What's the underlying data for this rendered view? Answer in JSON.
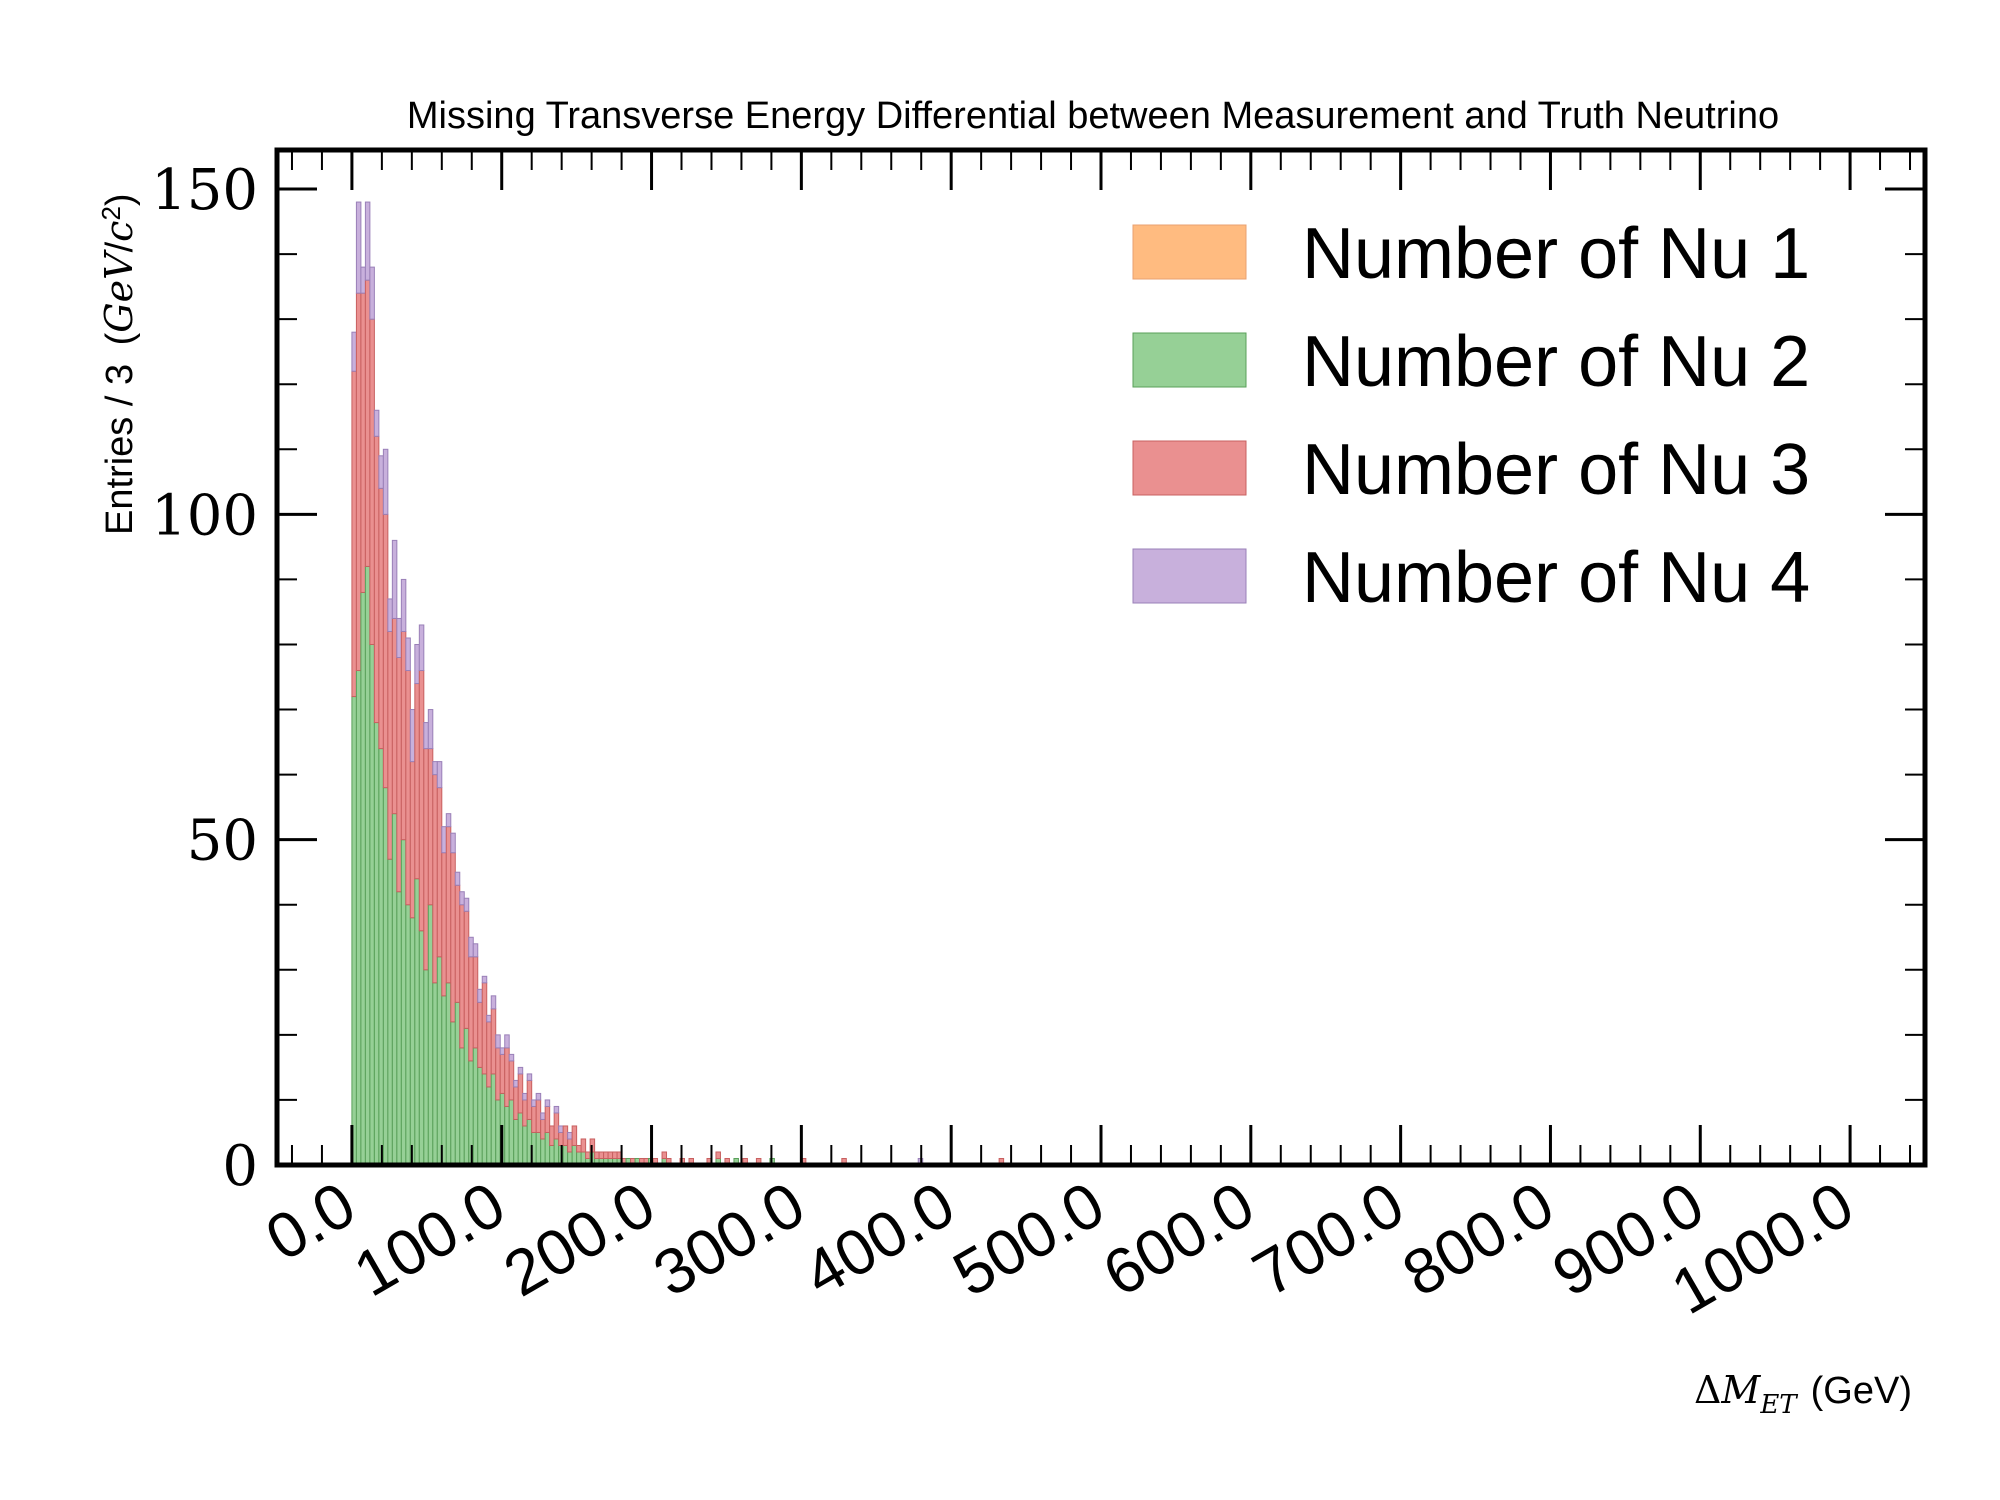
{
  "chart_data": {
    "type": "bar",
    "stacked": true,
    "histogram": true,
    "title": "Missing Transverse Energy Differential between Measurement and Truth Neutrino",
    "xlabel_text": "(GeV)",
    "ylabel_text": "Entries / 3",
    "xlim": [
      -50,
      1050
    ],
    "ylim": [
      0,
      156
    ],
    "bin_width": 3,
    "x_ticks": [
      0,
      100,
      200,
      300,
      400,
      500,
      600,
      700,
      800,
      900,
      1000
    ],
    "x_tick_labels": [
      "0.0",
      "100.0",
      "200.0",
      "300.0",
      "400.0",
      "500.0",
      "600.0",
      "700.0",
      "800.0",
      "900.0",
      "1000.0"
    ],
    "y_ticks": [
      0,
      50,
      100,
      150
    ],
    "y_tick_labels": [
      "0",
      "50",
      "100",
      "150"
    ],
    "legend_position": "top-right",
    "grid": false,
    "bin_starts": [
      0,
      3,
      6,
      9,
      12,
      15,
      18,
      21,
      24,
      27,
      30,
      33,
      36,
      39,
      42,
      45,
      48,
      51,
      54,
      57,
      60,
      63,
      66,
      69,
      72,
      75,
      78,
      81,
      84,
      87,
      90,
      93,
      96,
      99,
      102,
      105,
      108,
      111,
      114,
      117,
      120,
      123,
      126,
      129,
      132,
      135,
      138,
      141,
      144,
      147,
      150,
      153,
      156,
      159,
      162,
      165,
      168,
      171,
      174,
      177,
      180,
      183,
      186,
      189,
      192,
      195,
      198,
      201,
      204,
      207,
      210,
      213,
      216,
      219,
      222,
      225,
      228,
      231,
      234,
      237
    ],
    "series": [
      {
        "name": "Number of Nu 1",
        "color": "#ffbb80",
        "edge": "#e8a070",
        "values": [
          0,
          0,
          0,
          0,
          0,
          0,
          0,
          0,
          0,
          0,
          0,
          0,
          0,
          0,
          0,
          0,
          0,
          0,
          0,
          0,
          0,
          0,
          0,
          0,
          0,
          0,
          0,
          0,
          0,
          0,
          0,
          0,
          0,
          0,
          0,
          0,
          0,
          0,
          0,
          0,
          0,
          0,
          0,
          0,
          0,
          0,
          0,
          0,
          0,
          0,
          0,
          0,
          0,
          0,
          0,
          0,
          0,
          0,
          0,
          0,
          0,
          0,
          0,
          0,
          0,
          0,
          0,
          0,
          0,
          0,
          0,
          0,
          0,
          0,
          0,
          0,
          0,
          0,
          0,
          0
        ]
      },
      {
        "name": "Number of Nu 2",
        "color": "#96d096",
        "edge": "#5aa05a",
        "values": [
          72,
          76,
          88,
          92,
          80,
          68,
          64,
          58,
          47,
          54,
          42,
          50,
          40,
          38,
          44,
          36,
          30,
          40,
          28,
          32,
          26,
          28,
          22,
          25,
          18,
          21,
          16,
          18,
          15,
          14,
          12,
          14,
          10,
          11,
          9,
          10,
          7,
          8,
          6,
          7,
          5,
          5,
          4,
          5,
          3,
          4,
          3,
          3,
          2,
          3,
          2,
          2,
          1,
          2,
          1,
          1,
          1,
          1,
          1,
          1,
          0,
          1,
          0,
          1,
          0,
          0,
          1,
          0,
          0,
          1,
          0,
          0,
          0,
          0,
          0,
          0,
          0,
          0,
          0,
          0
        ]
      },
      {
        "name": "Number of Nu 3",
        "color": "#ea9090",
        "edge": "#c86060",
        "values": [
          50,
          58,
          46,
          44,
          50,
          44,
          40,
          42,
          35,
          30,
          36,
          32,
          36,
          24,
          30,
          40,
          34,
          24,
          32,
          26,
          22,
          24,
          26,
          18,
          22,
          18,
          16,
          14,
          10,
          14,
          10,
          10,
          8,
          6,
          9,
          6,
          5,
          6,
          4,
          6,
          4,
          5,
          3,
          4,
          3,
          4,
          2,
          3,
          2,
          3,
          1,
          2,
          1,
          2,
          1,
          1,
          1,
          1,
          1,
          1,
          1,
          0,
          1,
          0,
          1,
          1,
          0,
          1,
          0,
          1,
          1,
          0,
          0,
          1,
          0,
          1,
          0,
          0,
          0,
          1
        ]
      },
      {
        "name": "Number of Nu 4",
        "color": "#c8b0dc",
        "edge": "#9a80b8",
        "values": [
          6,
          14,
          4,
          12,
          8,
          4,
          5,
          10,
          5,
          12,
          6,
          8,
          5,
          8,
          6,
          7,
          4,
          6,
          2,
          4,
          4,
          2,
          3,
          2,
          2,
          2,
          3,
          2,
          2,
          1,
          1,
          2,
          2,
          1,
          2,
          1,
          1,
          1,
          1,
          1,
          1,
          1,
          1,
          1,
          0,
          1,
          1,
          0,
          1,
          0,
          0,
          0,
          0,
          0,
          0,
          0,
          0,
          0,
          0,
          0,
          0,
          0,
          0,
          0,
          0,
          0,
          0,
          0,
          0,
          0,
          0,
          0,
          0,
          0,
          0,
          0,
          0,
          0,
          0,
          0
        ]
      }
    ],
    "tail_bins": [
      {
        "x": 243,
        "values": [
          0,
          1,
          1,
          0
        ]
      },
      {
        "x": 249,
        "values": [
          0,
          0,
          1,
          0
        ]
      },
      {
        "x": 255,
        "values": [
          0,
          1,
          0,
          0
        ]
      },
      {
        "x": 261,
        "values": [
          0,
          0,
          1,
          0
        ]
      },
      {
        "x": 270,
        "values": [
          0,
          0,
          1,
          0
        ]
      },
      {
        "x": 279,
        "values": [
          0,
          1,
          0,
          0
        ]
      },
      {
        "x": 300,
        "values": [
          0,
          0,
          1,
          0
        ]
      },
      {
        "x": 327,
        "values": [
          0,
          0,
          1,
          0
        ]
      },
      {
        "x": 378,
        "values": [
          0,
          0,
          0,
          1
        ]
      },
      {
        "x": 432,
        "values": [
          0,
          0,
          1,
          0
        ]
      }
    ]
  }
}
